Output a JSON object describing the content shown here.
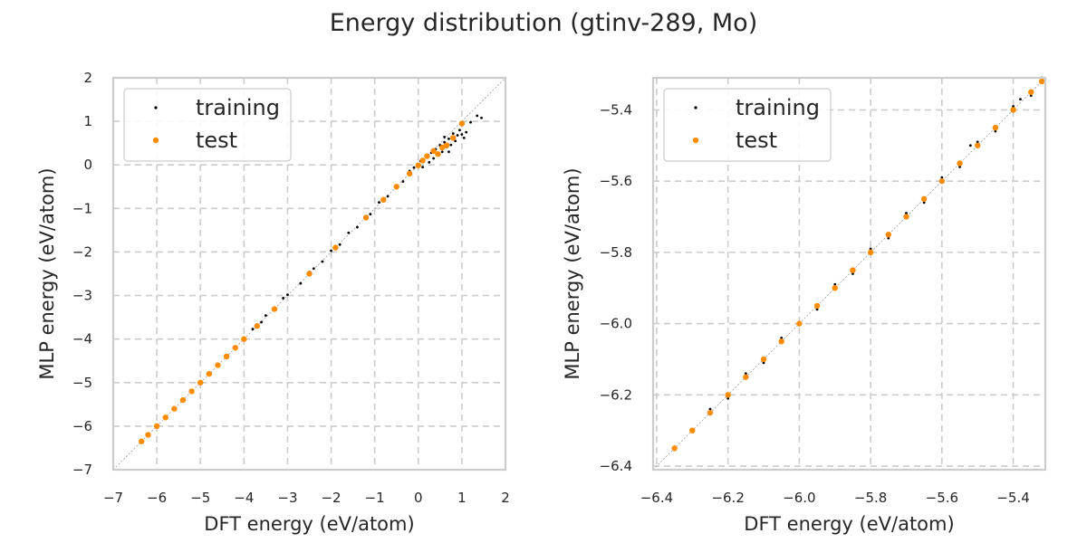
{
  "figure": {
    "title": "Energy distribution (gtinv-289, Mo)"
  },
  "colors": {
    "training": "#000000",
    "test": "#ff8c00",
    "grid": "#cccccc",
    "frame": "#cccccc",
    "diagonal": "#9e9e9e"
  },
  "chart_data": [
    {
      "type": "scatter",
      "xlabel": "DFT energy (eV/atom)",
      "ylabel": "MLP energy (eV/atom)",
      "xlim": [
        -7,
        2
      ],
      "ylim": [
        -7,
        2
      ],
      "xticks": [
        -7,
        -6,
        -5,
        -4,
        -3,
        -2,
        -1,
        0,
        1,
        2
      ],
      "yticks": [
        -7,
        -6,
        -5,
        -4,
        -3,
        -2,
        -1,
        0,
        1,
        2
      ],
      "tick_labels_x": [
        "−7",
        "−6",
        "−5",
        "−4",
        "−3",
        "−2",
        "−1",
        "0",
        "1",
        "2"
      ],
      "tick_labels_y": [
        "−7",
        "−6",
        "−5",
        "−4",
        "−3",
        "−2",
        "−1",
        "0",
        "1",
        "2"
      ],
      "grid": true,
      "diagonal_reference_line": true,
      "legend_position": "upper-left",
      "series": [
        {
          "name": "training",
          "color": "#000000",
          "points": [
            [
              -6.35,
              -6.34
            ],
            [
              -6.0,
              -5.99
            ],
            [
              -5.6,
              -5.61
            ],
            [
              -5.2,
              -5.19
            ],
            [
              -4.8,
              -4.81
            ],
            [
              -4.4,
              -4.39
            ],
            [
              -4.0,
              -4.02
            ],
            [
              -3.8,
              -3.77
            ],
            [
              -3.6,
              -3.61
            ],
            [
              -3.5,
              -3.46
            ],
            [
              -3.3,
              -3.32
            ],
            [
              -3.1,
              -3.06
            ],
            [
              -3.0,
              -2.98
            ],
            [
              -2.7,
              -2.72
            ],
            [
              -2.5,
              -2.46
            ],
            [
              -2.4,
              -2.38
            ],
            [
              -2.2,
              -2.22
            ],
            [
              -2.0,
              -1.97
            ],
            [
              -1.8,
              -1.83
            ],
            [
              -1.6,
              -1.56
            ],
            [
              -1.4,
              -1.43
            ],
            [
              -1.2,
              -1.18
            ],
            [
              -1.1,
              -1.13
            ],
            [
              -0.9,
              -0.86
            ],
            [
              -0.7,
              -0.72
            ],
            [
              -0.5,
              -0.47
            ],
            [
              -0.35,
              -0.38
            ],
            [
              -0.2,
              -0.14
            ],
            [
              -0.1,
              -0.06
            ],
            [
              0.0,
              -0.02
            ],
            [
              0.05,
              0.09
            ],
            [
              0.1,
              -0.05
            ],
            [
              0.2,
              0.18
            ],
            [
              0.25,
              0.06
            ],
            [
              0.3,
              0.28
            ],
            [
              0.35,
              0.15
            ],
            [
              0.4,
              0.36
            ],
            [
              0.45,
              0.22
            ],
            [
              0.5,
              0.45
            ],
            [
              0.55,
              0.3
            ],
            [
              0.6,
              0.52
            ],
            [
              0.65,
              0.41
            ],
            [
              0.7,
              0.6
            ],
            [
              0.75,
              0.46
            ],
            [
              0.8,
              0.72
            ],
            [
              0.85,
              0.55
            ],
            [
              0.9,
              0.68
            ],
            [
              0.95,
              0.8
            ],
            [
              1.0,
              0.7
            ],
            [
              1.05,
              0.62
            ],
            [
              1.1,
              0.75
            ],
            [
              1.2,
              0.98
            ],
            [
              1.35,
              1.13
            ],
            [
              1.45,
              1.08
            ],
            [
              0.6,
              0.64
            ],
            [
              0.7,
              0.3
            ]
          ]
        },
        {
          "name": "test",
          "color": "#ff8c00",
          "points": [
            [
              -6.35,
              -6.35
            ],
            [
              -6.2,
              -6.2
            ],
            [
              -6.0,
              -6.0
            ],
            [
              -5.8,
              -5.8
            ],
            [
              -5.6,
              -5.6
            ],
            [
              -5.4,
              -5.4
            ],
            [
              -5.2,
              -5.2
            ],
            [
              -5.0,
              -5.0
            ],
            [
              -4.8,
              -4.8
            ],
            [
              -4.6,
              -4.6
            ],
            [
              -4.4,
              -4.4
            ],
            [
              -4.2,
              -4.2
            ],
            [
              -4.0,
              -4.0
            ],
            [
              -3.7,
              -3.7
            ],
            [
              -3.3,
              -3.31
            ],
            [
              -2.5,
              -2.5
            ],
            [
              -1.9,
              -1.9
            ],
            [
              -1.2,
              -1.21
            ],
            [
              -0.8,
              -0.8
            ],
            [
              -0.5,
              -0.5
            ],
            [
              -0.2,
              -0.2
            ],
            [
              0.0,
              -0.01
            ],
            [
              0.1,
              0.1
            ],
            [
              0.2,
              0.2
            ],
            [
              0.35,
              0.32
            ],
            [
              0.45,
              0.25
            ],
            [
              0.55,
              0.4
            ],
            [
              0.65,
              0.45
            ],
            [
              0.8,
              0.62
            ],
            [
              1.0,
              0.95
            ]
          ]
        }
      ]
    },
    {
      "type": "scatter",
      "xlabel": "DFT energy (eV/atom)",
      "ylabel": "MLP energy (eV/atom)",
      "xlim": [
        -6.41,
        -5.31
      ],
      "ylim": [
        -6.41,
        -5.31
      ],
      "xticks": [
        -6.4,
        -6.2,
        -6.0,
        -5.8,
        -5.6,
        -5.4
      ],
      "yticks": [
        -6.4,
        -6.2,
        -6.0,
        -5.8,
        -5.6,
        -5.4
      ],
      "tick_labels_x": [
        "−6.4",
        "−6.2",
        "−6.0",
        "−5.8",
        "−5.6",
        "−5.4"
      ],
      "tick_labels_y": [
        "−6.4",
        "−6.2",
        "−6.0",
        "−5.8",
        "−5.6",
        "−5.4"
      ],
      "grid": true,
      "diagonal_reference_line": true,
      "legend_position": "upper-left",
      "series": [
        {
          "name": "training",
          "color": "#000000",
          "points": [
            [
              -6.35,
              -6.35
            ],
            [
              -6.3,
              -6.3
            ],
            [
              -6.25,
              -6.24
            ],
            [
              -6.2,
              -6.21
            ],
            [
              -6.15,
              -6.14
            ],
            [
              -6.1,
              -6.11
            ],
            [
              -6.05,
              -6.04
            ],
            [
              -6.0,
              -6.0
            ],
            [
              -5.95,
              -5.96
            ],
            [
              -5.9,
              -5.89
            ],
            [
              -5.85,
              -5.86
            ],
            [
              -5.8,
              -5.79
            ],
            [
              -5.75,
              -5.76
            ],
            [
              -5.7,
              -5.69
            ],
            [
              -5.65,
              -5.66
            ],
            [
              -5.6,
              -5.59
            ],
            [
              -5.55,
              -5.56
            ],
            [
              -5.5,
              -5.49
            ],
            [
              -5.45,
              -5.46
            ],
            [
              -5.4,
              -5.39
            ],
            [
              -5.35,
              -5.36
            ],
            [
              -5.32,
              -5.31
            ],
            [
              -5.38,
              -5.37
            ],
            [
              -5.52,
              -5.5
            ]
          ]
        },
        {
          "name": "test",
          "color": "#ff8c00",
          "points": [
            [
              -6.35,
              -6.35
            ],
            [
              -6.3,
              -6.3
            ],
            [
              -6.25,
              -6.25
            ],
            [
              -6.2,
              -6.2
            ],
            [
              -6.15,
              -6.15
            ],
            [
              -6.1,
              -6.1
            ],
            [
              -6.05,
              -6.05
            ],
            [
              -6.0,
              -6.0
            ],
            [
              -5.95,
              -5.95
            ],
            [
              -5.9,
              -5.9
            ],
            [
              -5.85,
              -5.85
            ],
            [
              -5.8,
              -5.8
            ],
            [
              -5.75,
              -5.75
            ],
            [
              -5.7,
              -5.7
            ],
            [
              -5.65,
              -5.65
            ],
            [
              -5.6,
              -5.6
            ],
            [
              -5.55,
              -5.55
            ],
            [
              -5.5,
              -5.5
            ],
            [
              -5.45,
              -5.45
            ],
            [
              -5.4,
              -5.4
            ],
            [
              -5.35,
              -5.35
            ],
            [
              -5.32,
              -5.32
            ]
          ]
        }
      ]
    }
  ]
}
